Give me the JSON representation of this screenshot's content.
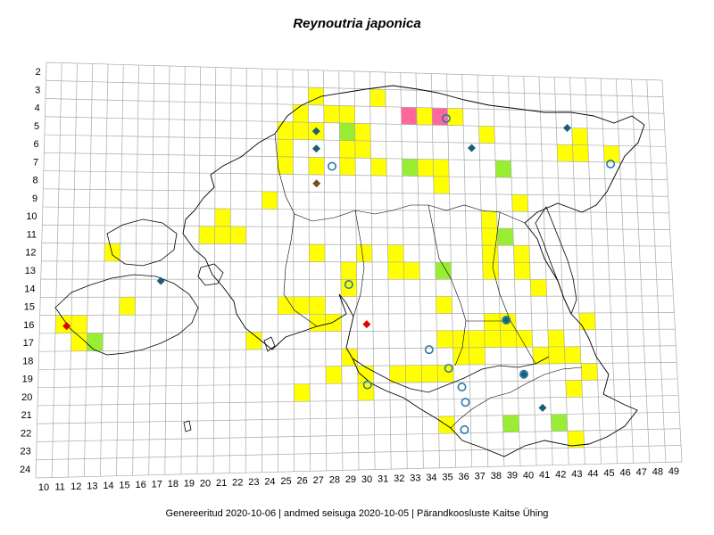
{
  "title": "Reynoutria japonica",
  "footer": "Genereeritud 2020-10-06  |  andmed seisuga 2020-10-05  |  Pärandkoosluste Kaitse Ühing",
  "grid": {
    "columns": [
      10,
      11,
      12,
      13,
      14,
      15,
      16,
      17,
      18,
      19,
      20,
      21,
      22,
      23,
      24,
      25,
      26,
      27,
      28,
      29,
      30,
      31,
      32,
      33,
      34,
      35,
      36,
      37,
      38,
      39,
      40,
      41,
      42,
      43,
      44,
      45,
      46,
      47,
      48,
      49
    ],
    "rows": [
      2,
      3,
      4,
      5,
      6,
      7,
      8,
      9,
      10,
      11,
      12,
      13,
      14,
      15,
      16,
      17,
      18,
      19,
      20,
      21,
      22,
      23,
      24
    ]
  },
  "colors": {
    "yellow": "#ffff00",
    "green": "#99ee33",
    "pink": "#ff6699",
    "grid_line": "#aaaaaa",
    "border": "#000000",
    "diamond_blue": "#1a5f7a",
    "diamond_red": "#e60000",
    "diamond_brown": "#7a4a1a",
    "ring": "#2a7aa8"
  },
  "cells": [
    {
      "c": 27,
      "r": 3,
      "color": "yellow"
    },
    {
      "c": 31,
      "r": 3,
      "color": "yellow"
    },
    {
      "c": 26,
      "r": 4,
      "color": "yellow"
    },
    {
      "c": 28,
      "r": 4,
      "color": "yellow"
    },
    {
      "c": 29,
      "r": 4,
      "color": "yellow"
    },
    {
      "c": 33,
      "r": 4,
      "color": "pink"
    },
    {
      "c": 34,
      "r": 4,
      "color": "yellow"
    },
    {
      "c": 35,
      "r": 4,
      "color": "pink"
    },
    {
      "c": 36,
      "r": 4,
      "color": "yellow"
    },
    {
      "c": 25,
      "r": 5,
      "color": "yellow"
    },
    {
      "c": 26,
      "r": 5,
      "color": "yellow"
    },
    {
      "c": 27,
      "r": 5,
      "color": "yellow"
    },
    {
      "c": 29,
      "r": 5,
      "color": "green"
    },
    {
      "c": 30,
      "r": 5,
      "color": "yellow"
    },
    {
      "c": 38,
      "r": 5,
      "color": "yellow"
    },
    {
      "c": 44,
      "r": 5,
      "color": "yellow"
    },
    {
      "c": 25,
      "r": 6,
      "color": "yellow"
    },
    {
      "c": 29,
      "r": 6,
      "color": "yellow"
    },
    {
      "c": 30,
      "r": 6,
      "color": "yellow"
    },
    {
      "c": 43,
      "r": 6,
      "color": "yellow"
    },
    {
      "c": 44,
      "r": 6,
      "color": "yellow"
    },
    {
      "c": 46,
      "r": 6,
      "color": "yellow"
    },
    {
      "c": 25,
      "r": 7,
      "color": "yellow"
    },
    {
      "c": 27,
      "r": 7,
      "color": "yellow"
    },
    {
      "c": 29,
      "r": 7,
      "color": "yellow"
    },
    {
      "c": 31,
      "r": 7,
      "color": "yellow"
    },
    {
      "c": 33,
      "r": 7,
      "color": "green"
    },
    {
      "c": 34,
      "r": 7,
      "color": "yellow"
    },
    {
      "c": 35,
      "r": 7,
      "color": "yellow"
    },
    {
      "c": 39,
      "r": 7,
      "color": "green"
    },
    {
      "c": 35,
      "r": 8,
      "color": "yellow"
    },
    {
      "c": 24,
      "r": 9,
      "color": "yellow"
    },
    {
      "c": 40,
      "r": 9,
      "color": "yellow"
    },
    {
      "c": 21,
      "r": 10,
      "color": "yellow"
    },
    {
      "c": 38,
      "r": 10,
      "color": "yellow"
    },
    {
      "c": 20,
      "r": 11,
      "color": "yellow"
    },
    {
      "c": 21,
      "r": 11,
      "color": "yellow"
    },
    {
      "c": 22,
      "r": 11,
      "color": "yellow"
    },
    {
      "c": 38,
      "r": 11,
      "color": "yellow"
    },
    {
      "c": 39,
      "r": 11,
      "color": "green"
    },
    {
      "c": 14,
      "r": 12,
      "color": "yellow"
    },
    {
      "c": 27,
      "r": 12,
      "color": "yellow"
    },
    {
      "c": 30,
      "r": 12,
      "color": "yellow"
    },
    {
      "c": 32,
      "r": 12,
      "color": "yellow"
    },
    {
      "c": 38,
      "r": 12,
      "color": "yellow"
    },
    {
      "c": 40,
      "r": 12,
      "color": "yellow"
    },
    {
      "c": 29,
      "r": 13,
      "color": "yellow"
    },
    {
      "c": 32,
      "r": 13,
      "color": "yellow"
    },
    {
      "c": 33,
      "r": 13,
      "color": "yellow"
    },
    {
      "c": 35,
      "r": 13,
      "color": "green"
    },
    {
      "c": 38,
      "r": 13,
      "color": "yellow"
    },
    {
      "c": 40,
      "r": 13,
      "color": "yellow"
    },
    {
      "c": 29,
      "r": 14,
      "color": "yellow"
    },
    {
      "c": 41,
      "r": 14,
      "color": "yellow"
    },
    {
      "c": 15,
      "r": 15,
      "color": "yellow"
    },
    {
      "c": 25,
      "r": 15,
      "color": "yellow"
    },
    {
      "c": 26,
      "r": 15,
      "color": "yellow"
    },
    {
      "c": 27,
      "r": 15,
      "color": "yellow"
    },
    {
      "c": 35,
      "r": 15,
      "color": "yellow"
    },
    {
      "c": 11,
      "r": 16,
      "color": "yellow"
    },
    {
      "c": 12,
      "r": 16,
      "color": "yellow"
    },
    {
      "c": 27,
      "r": 16,
      "color": "yellow"
    },
    {
      "c": 28,
      "r": 16,
      "color": "yellow"
    },
    {
      "c": 38,
      "r": 16,
      "color": "yellow"
    },
    {
      "c": 39,
      "r": 16,
      "color": "yellow"
    },
    {
      "c": 44,
      "r": 16,
      "color": "yellow"
    },
    {
      "c": 12,
      "r": 17,
      "color": "yellow"
    },
    {
      "c": 13,
      "r": 17,
      "color": "green"
    },
    {
      "c": 23,
      "r": 17,
      "color": "yellow"
    },
    {
      "c": 35,
      "r": 17,
      "color": "yellow"
    },
    {
      "c": 36,
      "r": 17,
      "color": "yellow"
    },
    {
      "c": 37,
      "r": 17,
      "color": "yellow"
    },
    {
      "c": 38,
      "r": 17,
      "color": "yellow"
    },
    {
      "c": 39,
      "r": 17,
      "color": "yellow"
    },
    {
      "c": 40,
      "r": 17,
      "color": "yellow"
    },
    {
      "c": 42,
      "r": 17,
      "color": "yellow"
    },
    {
      "c": 29,
      "r": 18,
      "color": "yellow"
    },
    {
      "c": 36,
      "r": 18,
      "color": "yellow"
    },
    {
      "c": 37,
      "r": 18,
      "color": "yellow"
    },
    {
      "c": 41,
      "r": 18,
      "color": "yellow"
    },
    {
      "c": 42,
      "r": 18,
      "color": "yellow"
    },
    {
      "c": 43,
      "r": 18,
      "color": "yellow"
    },
    {
      "c": 28,
      "r": 19,
      "color": "yellow"
    },
    {
      "c": 30,
      "r": 19,
      "color": "yellow"
    },
    {
      "c": 32,
      "r": 19,
      "color": "yellow"
    },
    {
      "c": 33,
      "r": 19,
      "color": "yellow"
    },
    {
      "c": 34,
      "r": 19,
      "color": "yellow"
    },
    {
      "c": 35,
      "r": 19,
      "color": "yellow"
    },
    {
      "c": 44,
      "r": 19,
      "color": "yellow"
    },
    {
      "c": 26,
      "r": 20,
      "color": "yellow"
    },
    {
      "c": 30,
      "r": 20,
      "color": "yellow"
    },
    {
      "c": 43,
      "r": 20,
      "color": "yellow"
    },
    {
      "c": 35,
      "r": 22,
      "color": "yellow"
    },
    {
      "c": 39,
      "r": 22,
      "color": "green"
    },
    {
      "c": 42,
      "r": 22,
      "color": "green"
    },
    {
      "c": 43,
      "r": 23,
      "color": "yellow"
    }
  ],
  "markers": [
    {
      "c": 27.5,
      "r": 5.5,
      "kind": "diamond",
      "color": "diamond_blue"
    },
    {
      "c": 27.5,
      "r": 6.5,
      "kind": "diamond",
      "color": "diamond_blue"
    },
    {
      "c": 37.5,
      "r": 6.3,
      "kind": "diamond",
      "color": "diamond_blue"
    },
    {
      "c": 43.7,
      "r": 5.0,
      "kind": "diamond",
      "color": "diamond_blue"
    },
    {
      "c": 27.5,
      "r": 8.5,
      "kind": "diamond",
      "color": "diamond_brown"
    },
    {
      "c": 17.6,
      "r": 14.1,
      "kind": "diamond",
      "color": "diamond_blue"
    },
    {
      "c": 11.7,
      "r": 16.6,
      "kind": "diamond",
      "color": "diamond_red"
    },
    {
      "c": 30.6,
      "r": 16.6,
      "kind": "diamond",
      "color": "diamond_red"
    },
    {
      "c": 41.5,
      "r": 21.6,
      "kind": "diamond",
      "color": "diamond_blue"
    },
    {
      "c": 39.4,
      "r": 16.4,
      "kind": "diamond",
      "color": "diamond_blue"
    },
    {
      "c": 40.4,
      "r": 19.6,
      "kind": "diamond",
      "color": "diamond_blue"
    },
    {
      "c": 35.9,
      "r": 4.6,
      "kind": "ring"
    },
    {
      "c": 28.5,
      "r": 7.5,
      "kind": "ring"
    },
    {
      "c": 46.4,
      "r": 7.1,
      "kind": "ring"
    },
    {
      "c": 29.5,
      "r": 14.3,
      "kind": "ring"
    },
    {
      "c": 34.5,
      "r": 18.1,
      "kind": "ring"
    },
    {
      "c": 35.7,
      "r": 19.2,
      "kind": "ring"
    },
    {
      "c": 30.6,
      "r": 20.1,
      "kind": "ring"
    },
    {
      "c": 36.5,
      "r": 20.3,
      "kind": "ring"
    },
    {
      "c": 36.7,
      "r": 21.2,
      "kind": "ring"
    },
    {
      "c": 36.6,
      "r": 22.8,
      "kind": "ring"
    },
    {
      "c": 39.4,
      "r": 16.4,
      "kind": "ring"
    },
    {
      "c": 40.4,
      "r": 19.6,
      "kind": "ring"
    }
  ]
}
